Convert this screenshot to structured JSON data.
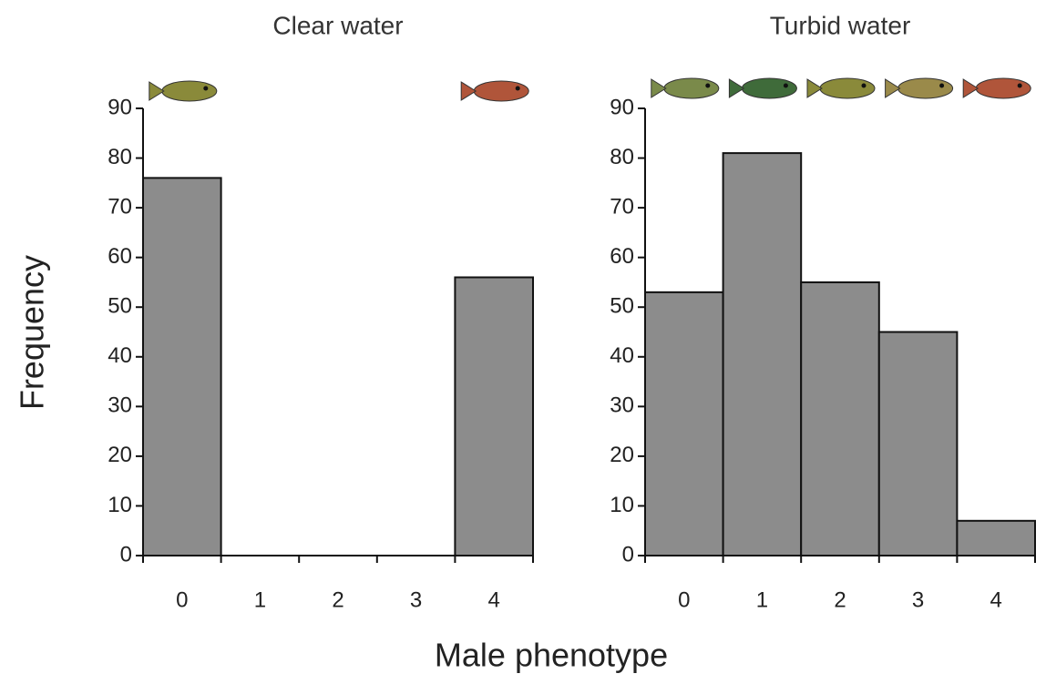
{
  "ylabel": "Frequency",
  "xlabel": "Male phenotype",
  "chart_data": [
    {
      "type": "bar",
      "title": "Clear water",
      "categories": [
        "0",
        "1",
        "2",
        "3",
        "4"
      ],
      "values": [
        76,
        0,
        0,
        0,
        56
      ],
      "color": "#8c8c8c",
      "ylim": [
        0,
        90
      ],
      "yticks": [
        0,
        10,
        20,
        30,
        40,
        50,
        60,
        70,
        80,
        90
      ]
    },
    {
      "type": "bar",
      "title": "Turbid water",
      "categories": [
        "0",
        "1",
        "2",
        "3",
        "4"
      ],
      "values": [
        53,
        81,
        55,
        45,
        7
      ],
      "color": "#8c8c8c",
      "ylim": [
        0,
        90
      ],
      "yticks": [
        0,
        10,
        20,
        30,
        40,
        50,
        60,
        70,
        80,
        90
      ]
    }
  ]
}
